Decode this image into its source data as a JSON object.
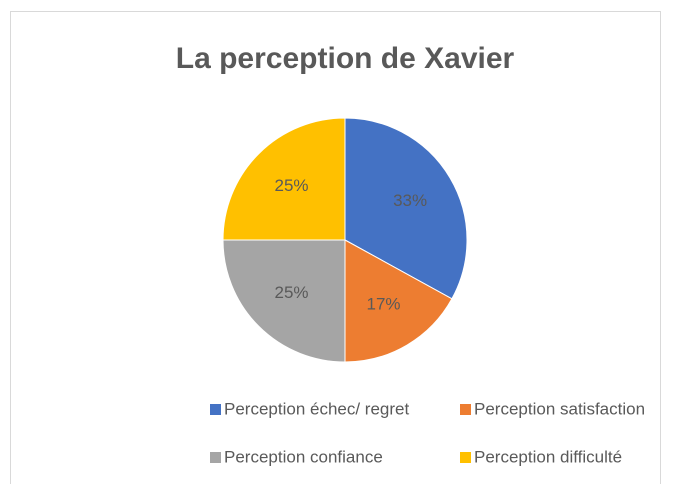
{
  "chart_data": {
    "type": "pie",
    "title": "La perception de Xavier",
    "categories": [
      "Perception échec/ regret",
      "Perception satisfaction",
      "Perception confiance",
      "Perception difficulté"
    ],
    "values": [
      33,
      17,
      25,
      25
    ],
    "value_labels": [
      "33%",
      "17%",
      "25%",
      "25%"
    ],
    "colors": [
      "#4472c4",
      "#ed7d31",
      "#a5a5a5",
      "#ffc000"
    ]
  }
}
